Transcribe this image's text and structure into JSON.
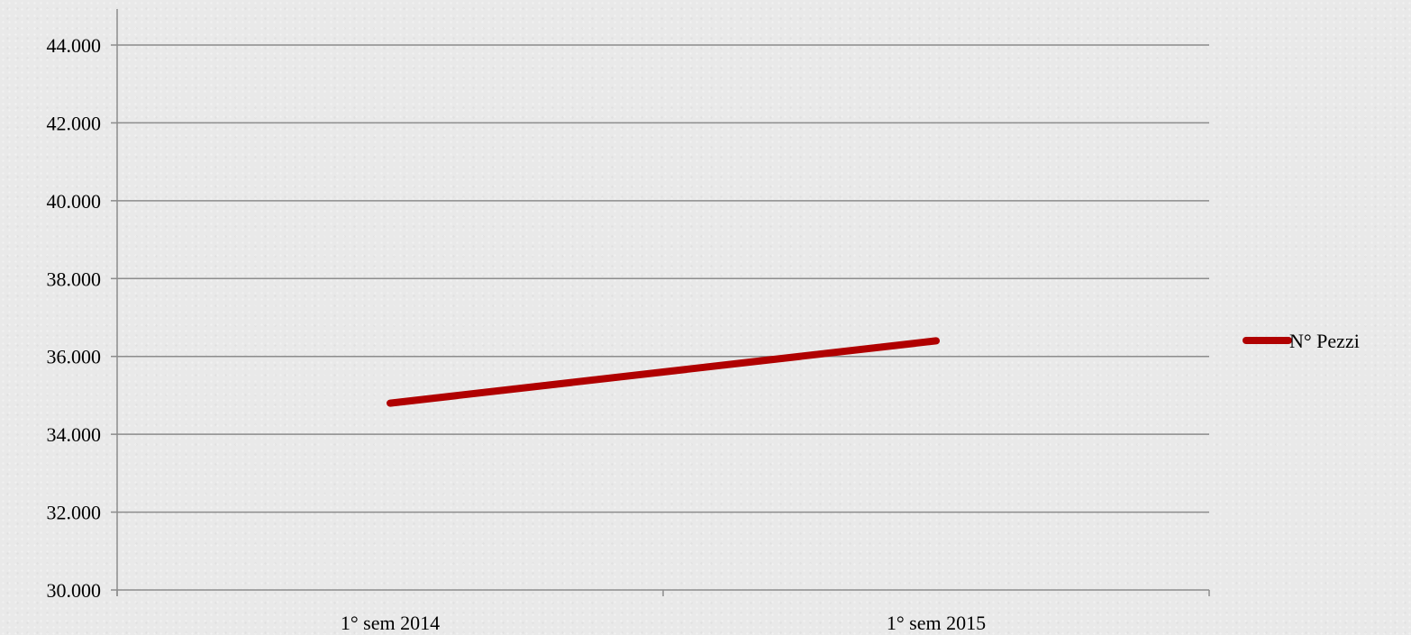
{
  "chart_data": {
    "type": "line",
    "categories": [
      "1° sem 2014",
      "1° sem 2015"
    ],
    "series": [
      {
        "name": "N° Pezzi",
        "values": [
          34800,
          36400
        ],
        "color": "#b00000"
      }
    ],
    "ylim": [
      30000,
      44000
    ],
    "ytick_labels": [
      "30.000",
      "32.000",
      "34.000",
      "36.000",
      "38.000",
      "40.000",
      "42.000",
      "44.000"
    ],
    "grid": true,
    "legend_position": "right",
    "title": "",
    "xlabel": "",
    "ylabel": ""
  },
  "colors": {
    "background": "#e9e9e9",
    "gridline": "#8c8c8c",
    "axis": "#8c8c8c",
    "series": "#b00000"
  }
}
